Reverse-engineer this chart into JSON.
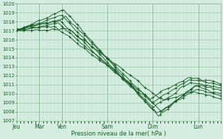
{
  "xlabel": "Pression niveau de la mer( hPa )",
  "bg_color": "#d4ede0",
  "grid_major_color": "#8fbc9a",
  "grid_minor_color": "#b8ddc5",
  "line_color": "#1a5c28",
  "ylim": [
    1007,
    1020
  ],
  "yticks": [
    1007,
    1008,
    1009,
    1010,
    1011,
    1012,
    1013,
    1014,
    1015,
    1016,
    1017,
    1018,
    1019,
    1020
  ],
  "day_labels": [
    "Jeu",
    "Mar",
    "Ven",
    "Sam",
    "Dim",
    "Lun"
  ],
  "day_positions": [
    0,
    24,
    48,
    96,
    144,
    192
  ],
  "total_hours": 216,
  "figsize": [
    3.2,
    2.0
  ],
  "dpi": 100
}
